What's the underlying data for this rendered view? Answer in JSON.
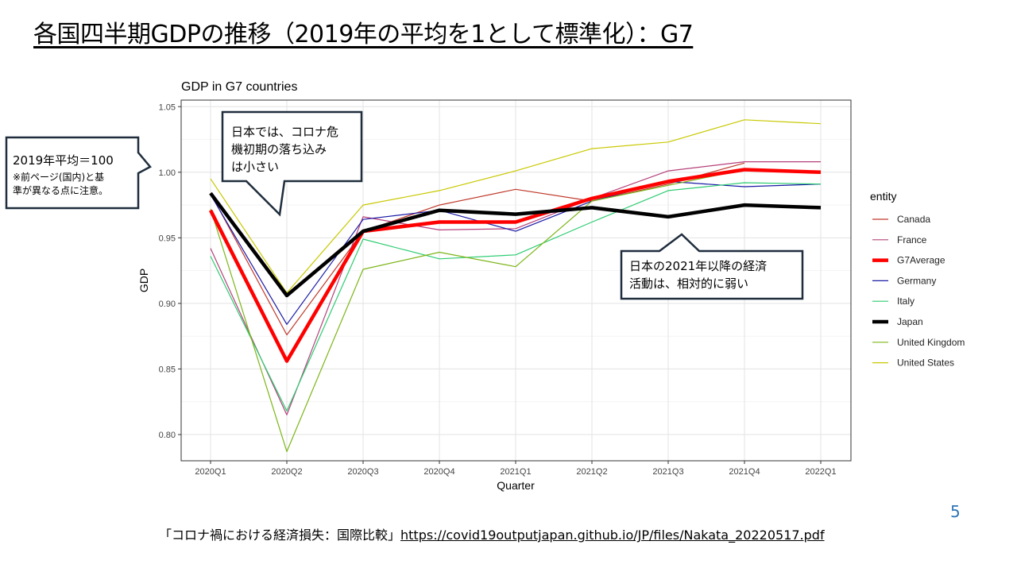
{
  "slide": {
    "title": "各国四半期GDPの推移（2019年の平均を1として標準化）：G7",
    "page_number": "5",
    "footer_text": "「コロナ禍における経済損失：国際比較」",
    "footer_link": "https://covid19outputjapan.github.io/JP/files/Nakata_20220517.pdf"
  },
  "callouts": {
    "baseline_title": "2019年平均＝100",
    "baseline_note_1": "※前ページ(国内)と基",
    "baseline_note_2": "準が異なる点に注意。",
    "japan_early_1": "日本では、コロナ危",
    "japan_early_2": "機初期の落ち込み",
    "japan_early_3": "は小さい",
    "japan_late_1": "日本の2021年以降の経済",
    "japan_late_2": "活動は、相対的に弱い"
  },
  "chart_data": {
    "type": "line",
    "title": "GDP in G7 countries",
    "xlabel": "Quarter",
    "ylabel": "GDP",
    "ylim": [
      0.78,
      1.055
    ],
    "yticks": [
      0.8,
      0.85,
      0.9,
      0.95,
      1.0,
      1.05
    ],
    "ytick_labels": [
      "0.80",
      "0.85",
      "0.90",
      "0.95",
      "1.00",
      "1.05"
    ],
    "categories": [
      "2020Q1",
      "2020Q2",
      "2020Q3",
      "2020Q4",
      "2021Q1",
      "2021Q2",
      "2021Q3",
      "2021Q4",
      "2022Q1"
    ],
    "grid": true,
    "legend_title": "entity",
    "legend_position": "right",
    "series": [
      {
        "name": "Canada",
        "color": "#c0392b",
        "width": 1.2,
        "values": [
          0.984,
          0.876,
          0.955,
          0.975,
          0.987,
          0.978,
          0.991,
          1.007,
          null
        ]
      },
      {
        "name": "France",
        "color": "#b5407a",
        "width": 1.2,
        "values": [
          0.942,
          0.815,
          0.966,
          0.956,
          0.957,
          0.98,
          1.001,
          1.008,
          1.008
        ]
      },
      {
        "name": "G7Average",
        "color": "#ff0000",
        "width": 4.5,
        "values": [
          0.971,
          0.856,
          0.955,
          0.962,
          0.962,
          0.98,
          0.993,
          1.002,
          1.0
        ]
      },
      {
        "name": "Germany",
        "color": "#1a1aa6",
        "width": 1.2,
        "values": [
          0.983,
          0.884,
          0.964,
          0.971,
          0.955,
          0.978,
          0.993,
          0.989,
          0.991
        ]
      },
      {
        "name": "Italy",
        "color": "#2ecc71",
        "width": 1.2,
        "values": [
          0.936,
          0.818,
          0.949,
          0.934,
          0.937,
          0.962,
          0.986,
          0.992,
          0.991
        ]
      },
      {
        "name": "Japan",
        "color": "#000000",
        "width": 4.5,
        "values": [
          0.984,
          0.906,
          0.955,
          0.971,
          0.968,
          0.973,
          0.966,
          0.975,
          0.973
        ]
      },
      {
        "name": "United Kingdom",
        "color": "#7cb518",
        "width": 1.2,
        "values": [
          0.972,
          0.787,
          0.926,
          0.939,
          0.928,
          0.978,
          0.99,
          1.002,
          null
        ]
      },
      {
        "name": "United States",
        "color": "#c8c800",
        "width": 1.2,
        "values": [
          0.995,
          0.908,
          0.975,
          0.986,
          1.001,
          1.018,
          1.023,
          1.04,
          1.037
        ]
      }
    ]
  }
}
